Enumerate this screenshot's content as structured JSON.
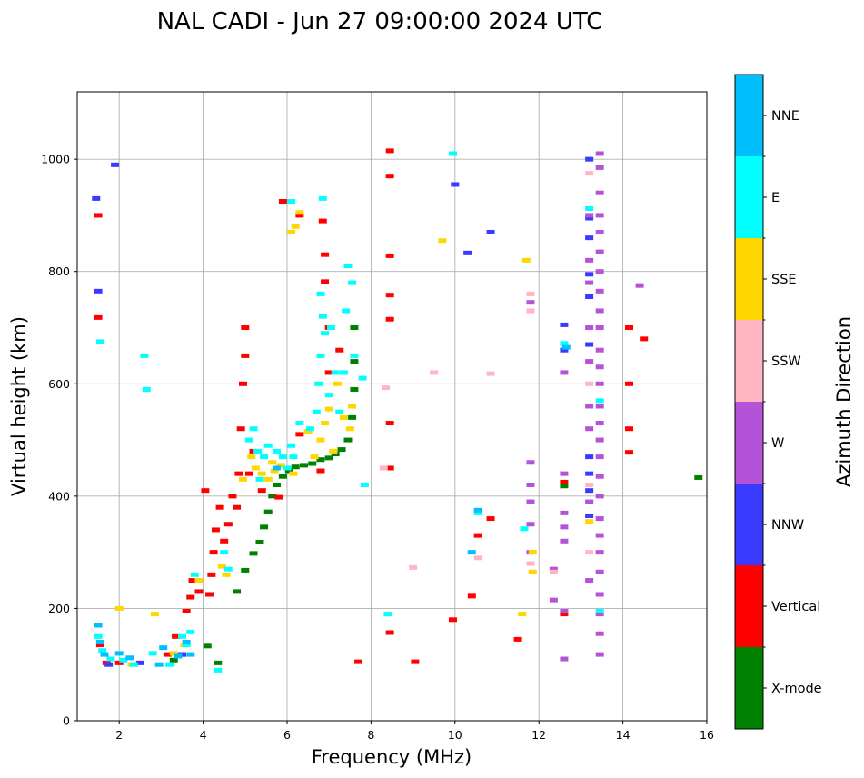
{
  "chart_data": {
    "type": "scatter",
    "title": "NAL CADI - Jun 27 09:00:00 2024 UTC",
    "xlabel": "Frequency (MHz)",
    "ylabel": "Virtual height (km)",
    "xlim": [
      1.0,
      16.0
    ],
    "ylim": [
      0,
      1120
    ],
    "xticks": [
      2,
      4,
      6,
      8,
      10,
      12,
      14,
      16
    ],
    "yticks": [
      0,
      200,
      400,
      600,
      800,
      1000
    ],
    "grid": true,
    "colorbar": {
      "title": "Azimuth Direction",
      "position": "right",
      "categories": [
        {
          "name": "X-mode",
          "color": "#008000"
        },
        {
          "name": "Vertical",
          "color": "#ff0000"
        },
        {
          "name": "NNW",
          "color": "#3a3aff"
        },
        {
          "name": "W",
          "color": "#b452d8"
        },
        {
          "name": "SSW",
          "color": "#ffb6c1"
        },
        {
          "name": "SSE",
          "color": "#ffd700"
        },
        {
          "name": "E",
          "color": "#00ffff"
        },
        {
          "name": "NNE",
          "color": "#00bfff"
        }
      ]
    },
    "series": [
      {
        "name": "X-mode",
        "points": [
          [
            3.3,
            108
          ],
          [
            3.5,
            118
          ],
          [
            4.1,
            133
          ],
          [
            4.35,
            103
          ],
          [
            4.8,
            230
          ],
          [
            5.0,
            268
          ],
          [
            5.2,
            298
          ],
          [
            5.35,
            318
          ],
          [
            5.45,
            345
          ],
          [
            5.55,
            372
          ],
          [
            5.65,
            400
          ],
          [
            5.75,
            420
          ],
          [
            5.9,
            435
          ],
          [
            6.05,
            445
          ],
          [
            6.2,
            452
          ],
          [
            6.4,
            455
          ],
          [
            6.6,
            458
          ],
          [
            6.8,
            465
          ],
          [
            7.0,
            468
          ],
          [
            7.15,
            475
          ],
          [
            7.3,
            483
          ],
          [
            7.45,
            500
          ],
          [
            7.55,
            540
          ],
          [
            7.6,
            590
          ],
          [
            7.6,
            640
          ],
          [
            7.6,
            700
          ],
          [
            12.6,
            418
          ],
          [
            15.8,
            433
          ]
        ]
      },
      {
        "name": "Vertical",
        "points": [
          [
            1.5,
            900
          ],
          [
            1.5,
            718
          ],
          [
            1.55,
            135
          ],
          [
            1.7,
            103
          ],
          [
            2.0,
            103
          ],
          [
            3.15,
            118
          ],
          [
            3.35,
            150
          ],
          [
            3.6,
            195
          ],
          [
            3.7,
            220
          ],
          [
            3.75,
            250
          ],
          [
            3.9,
            230
          ],
          [
            4.05,
            410
          ],
          [
            4.15,
            225
          ],
          [
            4.2,
            260
          ],
          [
            4.25,
            300
          ],
          [
            4.3,
            340
          ],
          [
            4.4,
            380
          ],
          [
            4.5,
            320
          ],
          [
            4.6,
            350
          ],
          [
            4.7,
            400
          ],
          [
            4.8,
            380
          ],
          [
            4.85,
            440
          ],
          [
            4.9,
            520
          ],
          [
            4.95,
            600
          ],
          [
            5.0,
            650
          ],
          [
            5.0,
            700
          ],
          [
            5.1,
            440
          ],
          [
            5.2,
            480
          ],
          [
            5.4,
            410
          ],
          [
            5.8,
            398
          ],
          [
            5.9,
            925
          ],
          [
            6.3,
            900
          ],
          [
            6.3,
            510
          ],
          [
            6.8,
            445
          ],
          [
            6.85,
            890
          ],
          [
            6.9,
            830
          ],
          [
            6.9,
            782
          ],
          [
            7.0,
            700
          ],
          [
            7.0,
            620
          ],
          [
            7.25,
            660
          ],
          [
            7.7,
            105
          ],
          [
            8.45,
            1015
          ],
          [
            8.45,
            970
          ],
          [
            8.45,
            828
          ],
          [
            8.45,
            758
          ],
          [
            8.45,
            715
          ],
          [
            8.45,
            530
          ],
          [
            8.45,
            450
          ],
          [
            8.45,
            157
          ],
          [
            9.05,
            105
          ],
          [
            9.95,
            180
          ],
          [
            10.4,
            222
          ],
          [
            10.55,
            330
          ],
          [
            10.85,
            360
          ],
          [
            11.5,
            145
          ],
          [
            12.6,
            425
          ],
          [
            12.6,
            190
          ],
          [
            14.15,
            700
          ],
          [
            14.15,
            600
          ],
          [
            14.15,
            520
          ],
          [
            14.15,
            478
          ],
          [
            14.5,
            680
          ]
        ]
      },
      {
        "name": "NNW",
        "points": [
          [
            1.45,
            930
          ],
          [
            1.5,
            765
          ],
          [
            1.9,
            990
          ],
          [
            1.75,
            100
          ],
          [
            2.5,
            103
          ],
          [
            3.5,
            118
          ],
          [
            10.0,
            955
          ],
          [
            10.3,
            833
          ],
          [
            10.85,
            870
          ],
          [
            12.6,
            705
          ],
          [
            12.6,
            660
          ],
          [
            13.2,
            1000
          ],
          [
            13.2,
            895
          ],
          [
            13.2,
            860
          ],
          [
            13.2,
            795
          ],
          [
            13.2,
            755
          ],
          [
            13.2,
            670
          ],
          [
            13.2,
            470
          ],
          [
            13.2,
            440
          ],
          [
            13.2,
            410
          ],
          [
            13.2,
            365
          ]
        ]
      },
      {
        "name": "W",
        "points": [
          [
            11.8,
            745
          ],
          [
            11.8,
            460
          ],
          [
            11.8,
            420
          ],
          [
            11.8,
            390
          ],
          [
            11.8,
            350
          ],
          [
            11.8,
            300
          ],
          [
            12.35,
            270
          ],
          [
            12.35,
            215
          ],
          [
            12.6,
            620
          ],
          [
            12.6,
            440
          ],
          [
            12.6,
            370
          ],
          [
            12.6,
            345
          ],
          [
            12.6,
            320
          ],
          [
            12.6,
            195
          ],
          [
            12.6,
            110
          ],
          [
            13.2,
            900
          ],
          [
            13.2,
            820
          ],
          [
            13.2,
            780
          ],
          [
            13.2,
            700
          ],
          [
            13.2,
            640
          ],
          [
            13.2,
            560
          ],
          [
            13.2,
            520
          ],
          [
            13.2,
            390
          ],
          [
            13.2,
            250
          ],
          [
            13.45,
            1010
          ],
          [
            13.45,
            985
          ],
          [
            13.45,
            940
          ],
          [
            13.45,
            900
          ],
          [
            13.45,
            870
          ],
          [
            13.45,
            835
          ],
          [
            13.45,
            800
          ],
          [
            13.45,
            765
          ],
          [
            13.45,
            730
          ],
          [
            13.45,
            700
          ],
          [
            13.45,
            660
          ],
          [
            13.45,
            630
          ],
          [
            13.45,
            600
          ],
          [
            13.45,
            560
          ],
          [
            13.45,
            530
          ],
          [
            13.45,
            500
          ],
          [
            13.45,
            470
          ],
          [
            13.45,
            435
          ],
          [
            13.45,
            400
          ],
          [
            13.45,
            360
          ],
          [
            13.45,
            330
          ],
          [
            13.45,
            300
          ],
          [
            13.45,
            265
          ],
          [
            13.45,
            225
          ],
          [
            13.45,
            190
          ],
          [
            13.45,
            155
          ],
          [
            13.45,
            118
          ],
          [
            14.4,
            775
          ]
        ]
      },
      {
        "name": "SSW",
        "points": [
          [
            8.35,
            593
          ],
          [
            8.3,
            450
          ],
          [
            9.0,
            273
          ],
          [
            9.5,
            620
          ],
          [
            10.85,
            618
          ],
          [
            10.55,
            290
          ],
          [
            11.8,
            280
          ],
          [
            11.8,
            760
          ],
          [
            11.8,
            730
          ],
          [
            12.35,
            265
          ],
          [
            13.2,
            975
          ],
          [
            13.2,
            600
          ],
          [
            13.2,
            420
          ],
          [
            13.2,
            300
          ]
        ]
      },
      {
        "name": "SSE",
        "points": [
          [
            2.0,
            200
          ],
          [
            2.3,
            100
          ],
          [
            2.85,
            190
          ],
          [
            3.3,
            120
          ],
          [
            3.55,
            135
          ],
          [
            3.9,
            250
          ],
          [
            4.45,
            275
          ],
          [
            4.55,
            260
          ],
          [
            4.95,
            430
          ],
          [
            5.15,
            470
          ],
          [
            5.25,
            450
          ],
          [
            5.4,
            440
          ],
          [
            5.55,
            430
          ],
          [
            5.65,
            460
          ],
          [
            5.7,
            445
          ],
          [
            5.85,
            455
          ],
          [
            6.0,
            450
          ],
          [
            6.15,
            440
          ],
          [
            6.2,
            880
          ],
          [
            6.1,
            870
          ],
          [
            6.3,
            905
          ],
          [
            6.5,
            515
          ],
          [
            6.65,
            470
          ],
          [
            6.8,
            500
          ],
          [
            6.9,
            530
          ],
          [
            7.0,
            555
          ],
          [
            7.1,
            480
          ],
          [
            7.2,
            600
          ],
          [
            7.35,
            540
          ],
          [
            7.5,
            520
          ],
          [
            7.55,
            560
          ],
          [
            9.7,
            855
          ],
          [
            11.6,
            190
          ],
          [
            11.7,
            820
          ],
          [
            11.85,
            300
          ],
          [
            11.85,
            265
          ],
          [
            13.2,
            355
          ]
        ]
      },
      {
        "name": "E",
        "points": [
          [
            1.55,
            675
          ],
          [
            1.5,
            150
          ],
          [
            1.6,
            125
          ],
          [
            1.8,
            110
          ],
          [
            2.1,
            108
          ],
          [
            2.35,
            100
          ],
          [
            2.6,
            650
          ],
          [
            2.65,
            590
          ],
          [
            2.8,
            120
          ],
          [
            3.2,
            100
          ],
          [
            3.5,
            150
          ],
          [
            3.6,
            135
          ],
          [
            3.7,
            158
          ],
          [
            3.8,
            260
          ],
          [
            4.35,
            90
          ],
          [
            4.5,
            300
          ],
          [
            4.6,
            270
          ],
          [
            5.1,
            500
          ],
          [
            5.2,
            520
          ],
          [
            5.3,
            480
          ],
          [
            5.35,
            430
          ],
          [
            5.45,
            470
          ],
          [
            5.55,
            490
          ],
          [
            5.75,
            480
          ],
          [
            5.9,
            470
          ],
          [
            6.0,
            450
          ],
          [
            6.1,
            490
          ],
          [
            6.1,
            925
          ],
          [
            6.15,
            470
          ],
          [
            6.3,
            530
          ],
          [
            6.55,
            520
          ],
          [
            6.7,
            550
          ],
          [
            6.75,
            600
          ],
          [
            6.8,
            650
          ],
          [
            6.8,
            760
          ],
          [
            6.85,
            720
          ],
          [
            6.85,
            930
          ],
          [
            6.9,
            690
          ],
          [
            7.0,
            580
          ],
          [
            7.05,
            700
          ],
          [
            7.15,
            620
          ],
          [
            7.25,
            550
          ],
          [
            7.35,
            620
          ],
          [
            7.4,
            730
          ],
          [
            7.45,
            810
          ],
          [
            7.55,
            780
          ],
          [
            7.6,
            650
          ],
          [
            7.8,
            610
          ],
          [
            7.85,
            420
          ],
          [
            8.4,
            190
          ],
          [
            9.95,
            1010
          ],
          [
            10.55,
            370
          ],
          [
            11.65,
            342
          ],
          [
            12.6,
            672
          ],
          [
            13.2,
            912
          ],
          [
            13.45,
            570
          ],
          [
            13.45,
            195
          ]
        ]
      },
      {
        "name": "NNE",
        "points": [
          [
            1.5,
            170
          ],
          [
            1.55,
            140
          ],
          [
            1.65,
            118
          ],
          [
            2.0,
            120
          ],
          [
            2.25,
            112
          ],
          [
            2.95,
            100
          ],
          [
            3.05,
            130
          ],
          [
            3.4,
            115
          ],
          [
            3.6,
            140
          ],
          [
            3.7,
            118
          ],
          [
            5.75,
            450
          ],
          [
            10.55,
            375
          ],
          [
            10.4,
            300
          ],
          [
            12.65,
            665
          ]
        ]
      }
    ]
  }
}
